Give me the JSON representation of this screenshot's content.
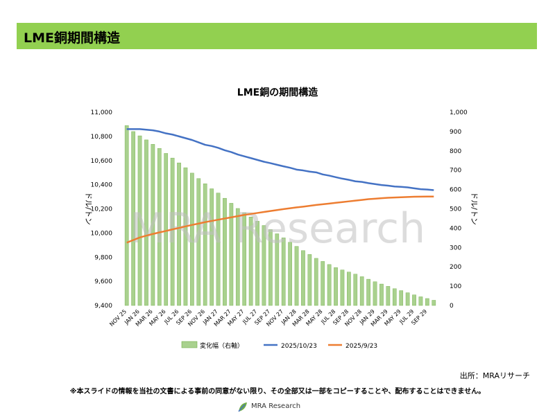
{
  "header": {
    "title": "LME銅期間構造"
  },
  "footer": {
    "source": "出所：MRAリサーチ",
    "disclaimer": "※本スライドの情報を当社の文書による事前の同意がない限り、その全部又は一部をコピーすることや、配布することはできません。",
    "logo_text": "MRA Research"
  },
  "watermark": "MRA Research",
  "colors": {
    "header_bg": "#92d050",
    "bar": "#a9d18e",
    "bar_edge": "#70ad47",
    "oct": "#4472c4",
    "sep": "#ed7d31"
  },
  "chart_data": {
    "type": "bar",
    "title": "LME銅の期間構造",
    "ylabel": "ドル/トン",
    "y2label": "ドル/トン",
    "ylim": [
      9400,
      11000
    ],
    "y2lim": [
      0,
      1000
    ],
    "yticks": [
      "9,400",
      "9,600",
      "9,800",
      "10,000",
      "10,200",
      "10,400",
      "10,600",
      "10,800",
      "11,000"
    ],
    "y2ticks": [
      "0",
      "100",
      "200",
      "300",
      "400",
      "500",
      "600",
      "700",
      "800",
      "900",
      "1,000"
    ],
    "xticklabels": [
      "NOV 25",
      "JAN 26",
      "MAR 26",
      "MAY 26",
      "JUL 26",
      "SEP 26",
      "NOV 26",
      "JAN 27",
      "MAR 27",
      "MAY 27",
      "JUL 27",
      "SEP 27",
      "NOV 27",
      "JAN 28",
      "MAR 28",
      "MAY 28",
      "JUL 28",
      "SEP 28",
      "NOV 28",
      "JAN 29",
      "MAR 29",
      "MAY 29",
      "JUL 29",
      "SEP 29"
    ],
    "legend": [
      "変化幅（右軸）",
      "2025/10/23",
      "2025/9/23"
    ],
    "legend_position": "bottom",
    "series": [
      {
        "name": "変化幅（右軸）",
        "type": "bar",
        "axis": "right",
        "values": [
          931,
          900,
          878,
          857,
          834,
          813,
          787,
          763,
          738,
          713,
          685,
          657,
          630,
          604,
          582,
          555,
          529,
          502,
          480,
          458,
          436,
          414,
          393,
          371,
          350,
          327,
          306,
          284,
          264,
          244,
          228,
          212,
          196,
          184,
          173,
          162,
          149,
          136,
          123,
          111,
          99,
          87,
          77,
          66,
          55,
          45,
          36,
          27
        ]
      },
      {
        "name": "2025/10/23",
        "type": "line",
        "axis": "left",
        "values": [
          10860,
          10860,
          10860,
          10855,
          10850,
          10840,
          10825,
          10815,
          10800,
          10785,
          10770,
          10750,
          10730,
          10720,
          10705,
          10685,
          10670,
          10650,
          10635,
          10620,
          10605,
          10590,
          10578,
          10565,
          10552,
          10540,
          10525,
          10518,
          10508,
          10502,
          10485,
          10475,
          10462,
          10450,
          10440,
          10428,
          10423,
          10413,
          10405,
          10397,
          10392,
          10385,
          10382,
          10378,
          10370,
          10363,
          10360,
          10355
        ]
      },
      {
        "name": "2025/9/23",
        "type": "line",
        "axis": "left",
        "values": [
          9920,
          9942,
          9963,
          9978,
          9992,
          10005,
          10017,
          10030,
          10042,
          10055,
          10067,
          10078,
          10090,
          10100,
          10110,
          10120,
          10130,
          10140,
          10150,
          10158,
          10166,
          10174,
          10182,
          10190,
          10198,
          10205,
          10212,
          10218,
          10225,
          10232,
          10238,
          10244,
          10250,
          10256,
          10262,
          10268,
          10274,
          10280,
          10284,
          10288,
          10292,
          10294,
          10296,
          10298,
          10300,
          10301,
          10302,
          10302
        ]
      }
    ]
  }
}
